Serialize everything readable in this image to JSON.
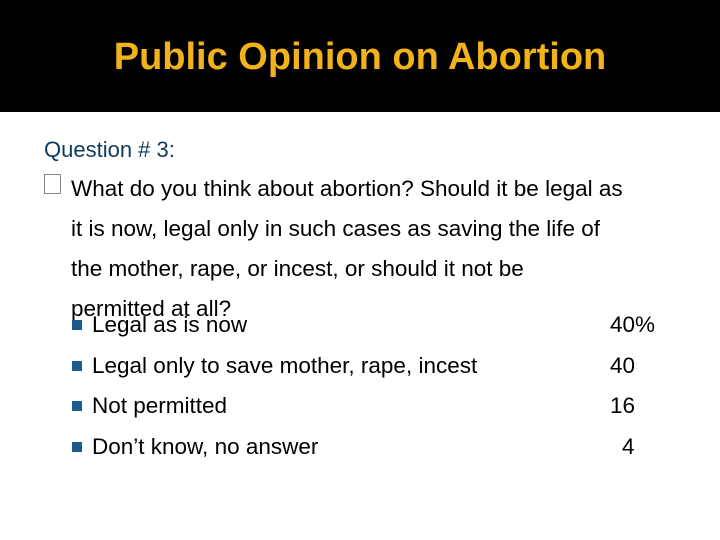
{
  "slide": {
    "title": "Public Opinion on Abortion",
    "question_label": "Question # 3:",
    "question_lines": [
      "What do you think about abortion? Should it be legal as",
      "it is now, legal only in such cases as saving the life of",
      "the mother, rape, or incest, or should it not be",
      "permitted at all?"
    ],
    "options": [
      {
        "label": "Legal as is now",
        "value": "40%"
      },
      {
        "label": "Legal only to save mother, rape, incest",
        "value": "40"
      },
      {
        "label": "Not permitted",
        "value": "16"
      },
      {
        "label": "Don’t know, no answer",
        "value": "4"
      }
    ]
  },
  "colors": {
    "title_bar": "#000000",
    "title_text": "#f2b21c",
    "question_label": "#0e3a5c",
    "bullet_square": "#1b5c8c"
  }
}
